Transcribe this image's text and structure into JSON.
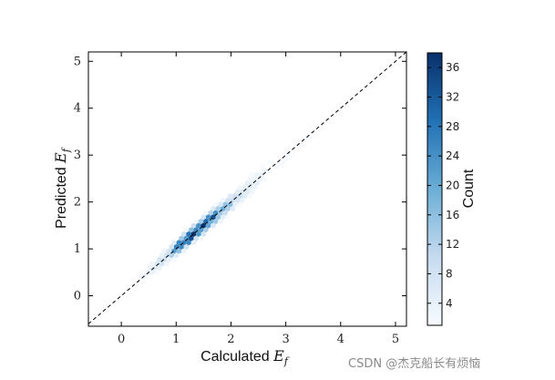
{
  "chart_data": {
    "type": "heatmap",
    "subtype": "hexbin-parity-plot",
    "xlabel_text": "Calculated",
    "xlabel_symbol": "E",
    "xlabel_sub": "f",
    "ylabel_text": "Predicted",
    "ylabel_symbol": "E",
    "ylabel_sub": "f",
    "xlim": [
      -0.6,
      5.2
    ],
    "ylim": [
      -0.65,
      5.2
    ],
    "xticks": [
      "0",
      "1",
      "2",
      "3",
      "4",
      "5"
    ],
    "yticks": [
      "0",
      "1",
      "2",
      "3",
      "4",
      "5"
    ],
    "reference_line": {
      "style": "dashed",
      "from": [
        -0.6,
        -0.6
      ],
      "to": [
        5.2,
        5.2
      ]
    },
    "density_ridge": {
      "x": [
        0.2,
        0.5,
        0.8,
        1.0,
        1.2,
        1.4,
        1.6,
        1.8,
        2.0,
        2.3,
        2.6,
        3.0,
        3.4
      ],
      "count": [
        1,
        3,
        10,
        24,
        34,
        36,
        30,
        20,
        12,
        6,
        3,
        1,
        1
      ]
    },
    "colorbar": {
      "label": "Count",
      "min": 1,
      "max": 38,
      "ticks": [
        "4",
        "8",
        "12",
        "16",
        "20",
        "24",
        "28",
        "32",
        "36"
      ],
      "colormap": "Blues"
    }
  },
  "watermark": "CSDN @杰克船长有烦恼"
}
